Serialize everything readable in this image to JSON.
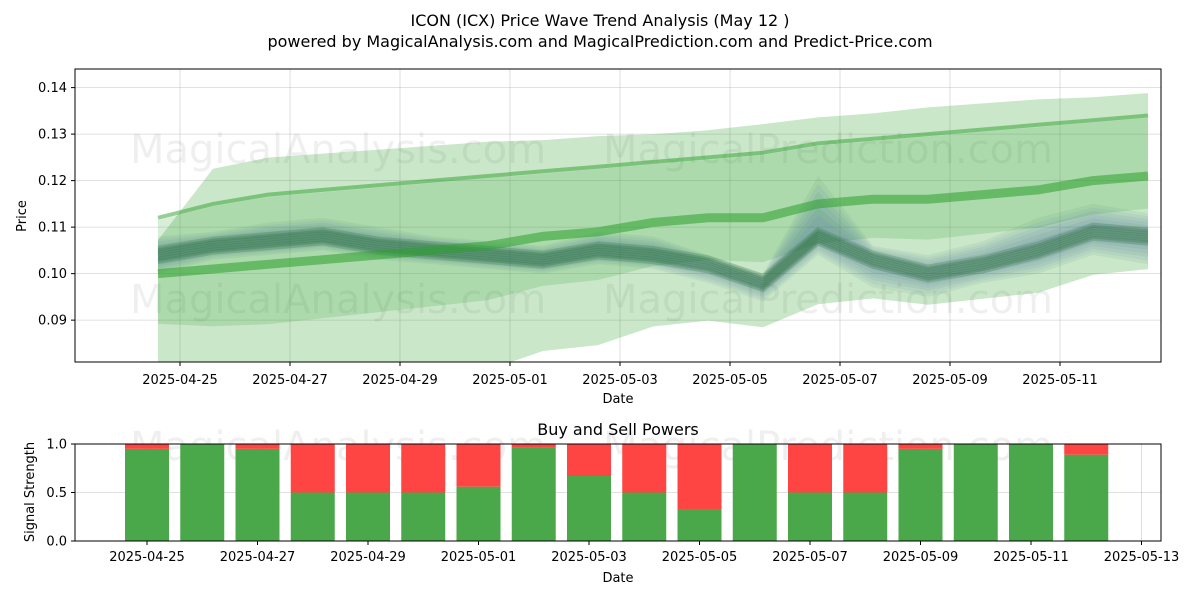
{
  "header": {
    "title": "ICON (ICX) Price Wave Trend Analysis (May 12 )",
    "subtitle": "powered by MagicalAnalysis.com and MagicalPrediction.com and Predict-Price.com"
  },
  "watermarks": [
    "MagicalAnalysis.com",
    "MagicalPrediction.com"
  ],
  "colors": {
    "band": "#2ca02c",
    "waves": "#1a6b2a",
    "blue": "#4c4cff",
    "buy": "#4aa84a",
    "sell": "#ff4444"
  },
  "chart_data": [
    {
      "type": "area",
      "title": "ICON (ICX) Price Wave Trend Analysis (May 12 )",
      "xlabel": "Date",
      "ylabel": "Price",
      "ylim": [
        0.081,
        0.144
      ],
      "yticks": [
        0.09,
        0.1,
        0.11,
        0.12,
        0.13,
        0.14
      ],
      "ytick_labels": [
        "0.09",
        "0.10",
        "0.11",
        "0.12",
        "0.13",
        "0.14"
      ],
      "xtick_labels": [
        "2025-04-25",
        "2025-04-27",
        "2025-04-29",
        "2025-05-01",
        "2025-05-03",
        "2025-05-05",
        "2025-05-07",
        "2025-05-09",
        "2025-05-11"
      ],
      "x": [
        "04-24",
        "04-25",
        "04-26",
        "04-27",
        "04-28",
        "04-29",
        "04-30",
        "05-01",
        "05-02",
        "05-03",
        "05-04",
        "05-05",
        "05-06",
        "05-07",
        "05-08",
        "05-09",
        "05-10",
        "05-11",
        "05-12"
      ],
      "series": [
        {
          "name": "price wave (center)",
          "values": [
            0.104,
            0.106,
            0.107,
            0.108,
            0.106,
            0.105,
            0.104,
            0.103,
            0.105,
            0.104,
            0.102,
            0.098,
            0.108,
            0.103,
            0.1,
            0.102,
            0.105,
            0.109,
            0.108
          ]
        },
        {
          "name": "price wave (upper)",
          "values": [
            0.108,
            0.109,
            0.111,
            0.112,
            0.11,
            0.108,
            0.107,
            0.106,
            0.109,
            0.108,
            0.104,
            0.1,
            0.121,
            0.106,
            0.104,
            0.107,
            0.112,
            0.115,
            0.113
          ]
        },
        {
          "name": "price wave (lower)",
          "values": [
            0.1,
            0.103,
            0.104,
            0.105,
            0.103,
            0.102,
            0.101,
            0.1,
            0.102,
            0.101,
            0.098,
            0.094,
            0.104,
            0.097,
            0.095,
            0.098,
            0.1,
            0.104,
            0.102
          ]
        },
        {
          "name": "upper trend line",
          "values": [
            0.112,
            0.115,
            0.117,
            0.118,
            0.119,
            0.12,
            0.121,
            0.122,
            0.123,
            0.124,
            0.125,
            0.126,
            0.128,
            0.129,
            0.13,
            0.131,
            0.132,
            0.133,
            0.134
          ]
        },
        {
          "name": "middle trend line",
          "values": [
            0.1,
            0.101,
            0.102,
            0.103,
            0.104,
            0.105,
            0.106,
            0.108,
            0.109,
            0.111,
            0.112,
            0.112,
            0.115,
            0.116,
            0.116,
            0.117,
            0.118,
            0.12,
            0.121
          ]
        }
      ]
    },
    {
      "type": "bar",
      "title": "Buy and Sell Powers",
      "xlabel": "Date",
      "ylabel": "Signal Strength",
      "ylim": [
        0,
        1
      ],
      "yticks": [
        0,
        0.5,
        1
      ],
      "ytick_labels": [
        "0.0",
        "0.5",
        "1.0"
      ],
      "xtick_labels": [
        "2025-04-25",
        "2025-04-27",
        "2025-04-29",
        "2025-05-01",
        "2025-05-03",
        "2025-05-05",
        "2025-05-07",
        "2025-05-09",
        "2025-05-11",
        "2025-05-13"
      ],
      "categories": [
        "2025-04-25",
        "2025-04-26",
        "2025-04-27",
        "2025-04-28",
        "2025-04-29",
        "2025-04-30",
        "2025-05-01",
        "2025-05-02",
        "2025-05-03",
        "2025-05-04",
        "2025-05-05",
        "2025-05-06",
        "2025-05-07",
        "2025-05-08",
        "2025-05-09",
        "2025-05-10",
        "2025-05-11",
        "2025-05-12"
      ],
      "series": [
        {
          "name": "Buy",
          "values": [
            0.95,
            1.0,
            0.95,
            0.5,
            0.5,
            0.5,
            0.56,
            0.96,
            0.67,
            0.5,
            0.33,
            1.0,
            0.5,
            0.5,
            0.95,
            1.0,
            1.0,
            0.89
          ]
        },
        {
          "name": "Sell",
          "values": [
            0.05,
            0.0,
            0.05,
            0.5,
            0.5,
            0.5,
            0.44,
            0.04,
            0.33,
            0.5,
            0.67,
            0.0,
            0.5,
            0.5,
            0.05,
            0.0,
            0.0,
            0.11
          ]
        }
      ]
    }
  ]
}
